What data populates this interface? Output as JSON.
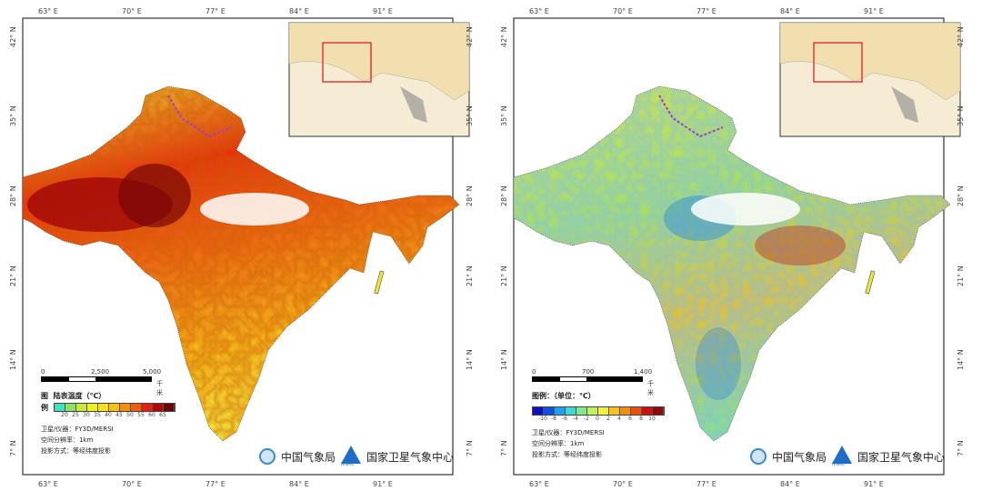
{
  "axes": {
    "lon_labels": [
      "63° E",
      "70° E",
      "77° E",
      "84° E",
      "91° E"
    ],
    "lat_labels": [
      "42° N",
      "35° N",
      "28° N",
      "21° N",
      "14° N",
      "7° N"
    ]
  },
  "left_map": {
    "scale_labels": [
      "0",
      "2,500",
      "5,000"
    ],
    "scale_unit": "千米",
    "legend_title_a": "图",
    "legend_title_b": "例",
    "legend_name": "陆表温度（℃）",
    "legend_ticks": [
      "20",
      "25",
      "30",
      "35",
      "40",
      "45",
      "50",
      "55",
      "60",
      "65"
    ],
    "legend_colors": [
      "#40e0c0",
      "#8ee06a",
      "#c8e840",
      "#f0f020",
      "#f8e020",
      "#f8c010",
      "#f09010",
      "#e86010",
      "#e02010",
      "#b00808",
      "#6a0606"
    ],
    "satellite": "卫星/仪器：FY3D/MERSI",
    "resolution": "空间分辨率：1km",
    "projection": "投影方式：等经纬度投影"
  },
  "right_map": {
    "scale_labels": [
      "0",
      "700",
      "1,400"
    ],
    "scale_unit": "千米",
    "legend_name": "图例：（单位：℃）",
    "legend_ticks": [
      "-10",
      "-8",
      "-6",
      "-4",
      "-2",
      "0",
      "2",
      "4",
      "6",
      "8",
      "10"
    ],
    "legend_colors": [
      "#1010c0",
      "#1050e0",
      "#20a0f0",
      "#40d8d0",
      "#80e890",
      "#c0f060",
      "#f0f040",
      "#f8c020",
      "#f09010",
      "#e85010",
      "#d01010",
      "#900808"
    ],
    "satellite": "卫星/仪器：FY3D/MERSI",
    "resolution": "空间分辨率：1km",
    "projection": "投影方式：等经纬度投影"
  },
  "logos": {
    "cma": "中国气象局",
    "nsmc": "国家卫星气象中心",
    "nsmc_mark": "NSMC"
  }
}
